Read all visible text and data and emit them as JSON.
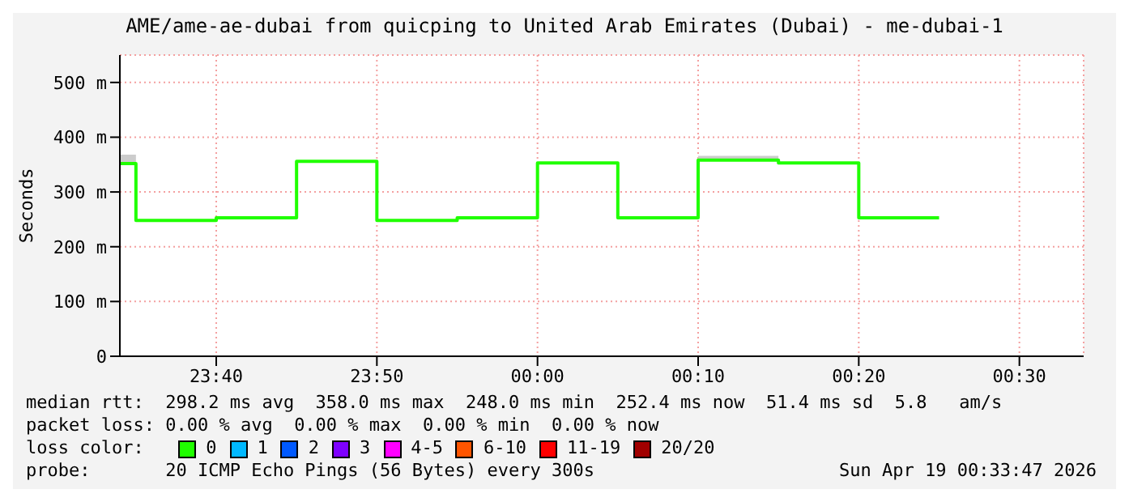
{
  "chart_data": {
    "type": "step",
    "title": "AME/ame-ae-dubai from quicping to United Arab Emirates (Dubai) - me-dubai-1",
    "ylabel": "Seconds",
    "x": [
      "2026-04-18T23:34",
      "2026-04-18T23:35",
      "2026-04-18T23:40",
      "2026-04-18T23:45",
      "2026-04-18T23:50",
      "2026-04-18T23:55",
      "2026-04-19T00:00",
      "2026-04-19T00:05",
      "2026-04-19T00:10",
      "2026-04-19T00:15",
      "2026-04-19T00:20",
      "2026-04-19T00:25"
    ],
    "series": [
      {
        "name": "0",
        "color": "#20ff00",
        "values": [
          352,
          248,
          253,
          356,
          248,
          253,
          353,
          253,
          358,
          353,
          253,
          253
        ],
        "lower": [
          352,
          248,
          253,
          356,
          248,
          253,
          353,
          253,
          358,
          353,
          253,
          253
        ],
        "upper": [
          368,
          248,
          253,
          356,
          248,
          253,
          353,
          253,
          366,
          353,
          253,
          253
        ]
      },
      {
        "name": "1",
        "color": "#00b8ff",
        "values": [
          null,
          null,
          null,
          null,
          null,
          null,
          null,
          null,
          null,
          null,
          null,
          null
        ]
      },
      {
        "name": "2",
        "color": "#0059ff",
        "values": [
          null,
          null,
          null,
          null,
          null,
          null,
          null,
          null,
          null,
          null,
          null,
          null
        ]
      },
      {
        "name": "3",
        "color": "#7e00ff",
        "values": [
          null,
          null,
          null,
          null,
          null,
          null,
          null,
          null,
          null,
          null,
          null,
          null
        ]
      },
      {
        "name": "4-5",
        "color": "#ff00ff",
        "values": [
          null,
          null,
          null,
          null,
          null,
          null,
          null,
          null,
          null,
          null,
          null,
          null
        ]
      },
      {
        "name": "6-10",
        "color": "#ff5500",
        "values": [
          null,
          null,
          null,
          null,
          null,
          null,
          null,
          null,
          null,
          null,
          null,
          null
        ]
      },
      {
        "name": "11-19",
        "color": "#ff0000",
        "values": [
          null,
          null,
          null,
          null,
          null,
          null,
          null,
          null,
          null,
          null,
          null,
          null
        ]
      },
      {
        "name": "20/20",
        "color": "#a10000",
        "values": [
          null,
          null,
          null,
          null,
          null,
          null,
          null,
          null,
          null,
          null,
          null,
          null
        ]
      }
    ],
    "xlim": [
      "2026-04-18T23:34",
      "2026-04-19T00:34"
    ],
    "xticks": [
      {
        "value": "2026-04-18T23:40",
        "label": "23:40"
      },
      {
        "value": "2026-04-18T23:50",
        "label": "23:50"
      },
      {
        "value": "2026-04-19T00:00",
        "label": "00:00"
      },
      {
        "value": "2026-04-19T00:10",
        "label": "00:10"
      },
      {
        "value": "2026-04-19T00:20",
        "label": "00:20"
      },
      {
        "value": "2026-04-19T00:30",
        "label": "00:30"
      }
    ],
    "ylim": [
      0,
      550
    ],
    "yticks": [
      {
        "value": 0,
        "label": "0"
      },
      {
        "value": 100,
        "label": "100 m"
      },
      {
        "value": 200,
        "label": "200 m"
      },
      {
        "value": 300,
        "label": "300 m"
      },
      {
        "value": 400,
        "label": "400 m"
      },
      {
        "value": 500,
        "label": "500 m"
      }
    ],
    "grid": true,
    "legend": "bottom",
    "legend_title": "loss color:",
    "line_style": "solid",
    "marker": "none",
    "annotations": [
      "median rtt:  298.2 ms avg  358.0 ms max  248.0 ms min  252.4 ms now  51.4 ms sd  5.8   am/s",
      "packet loss: 0.00 % avg  0.00 % max  0.00 % min  0.00 % now",
      "probe:       20 ICMP Echo Pings (56 Bytes) every 300s",
      "Sun Apr 19 00:33:47 2026"
    ]
  }
}
